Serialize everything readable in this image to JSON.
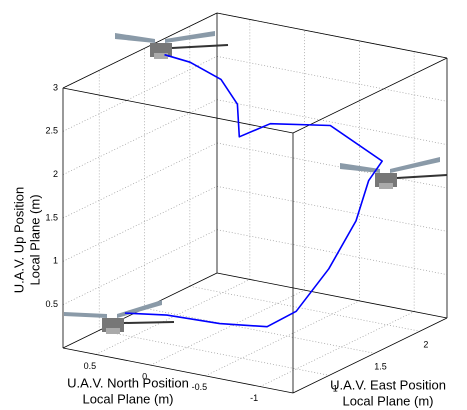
{
  "chart_data": {
    "type": "line3d",
    "xlabel": [
      "U.A.V. North Position",
      "Local Plane (m)"
    ],
    "ylabel": [
      "U.A.V. East Position",
      "Local Plane (m)"
    ],
    "zlabel": [
      "U.A.V. Up Position",
      "Local Plane (m)"
    ],
    "x": [
      0.4,
      0.1,
      -0.3,
      -0.65,
      -0.75,
      -0.8,
      -0.8,
      -0.75,
      -0.75,
      -0.4,
      -0.1,
      0.1,
      0.2,
      0.35,
      0.55,
      0.7
    ],
    "y": [
      0.8,
      0.9,
      1.0,
      1.1,
      1.3,
      1.6,
      1.9,
      2.1,
      2.25,
      2.1,
      1.8,
      1.7,
      1.8,
      1.8,
      1.7,
      1.6
    ],
    "z": [
      0.4,
      0.4,
      0.35,
      0.35,
      0.45,
      0.8,
      1.2,
      1.55,
      1.7,
      2.1,
      2.2,
      2.05,
      2.35,
      2.6,
      2.8,
      2.9
    ],
    "color": "#0000ff",
    "xlim": [
      -1.3,
      0.8
    ],
    "ylim": [
      0.6,
      2.3
    ],
    "zlim": [
      0,
      3
    ],
    "xticks": [
      0.5,
      0,
      -0.5,
      -1
    ],
    "yticks": [
      1,
      1.5,
      2
    ],
    "zticks": [
      0.5,
      1,
      1.5,
      2,
      2.5,
      3
    ],
    "grid": true
  }
}
